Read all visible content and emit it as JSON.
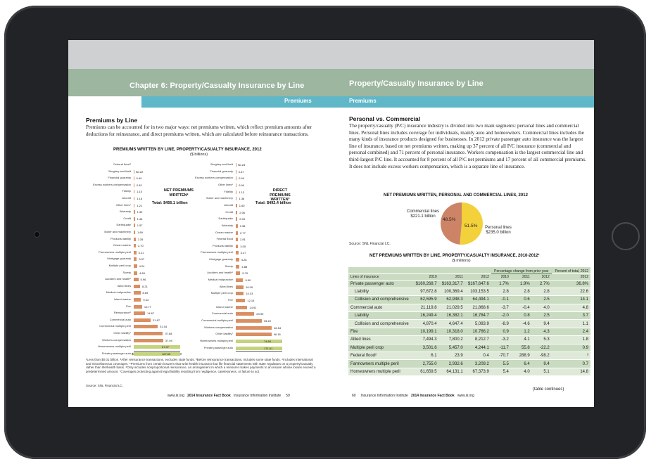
{
  "left_page": {
    "chapter_title": "Chapter 6: Property/Casualty Insurance by Line",
    "section_tab": "Premiums",
    "heading": "Premiums by Line",
    "body": "Premiums can be accounted for in two major ways: net premiums written, which reflect premium amounts after deductions for reinsurance, and direct premiums written, which are calculated before reinsurance transactions.",
    "chart_title": "PREMIUMS WRITTEN BY LINE, PROPERTY/CASUALTY INSURANCE, 2012",
    "chart_subtitle": "($ billions)",
    "net_label": "NET PREMIUMS WRITTEN²",
    "net_total": "Total: $456.1 billion",
    "direct_label": "DIRECT PREMIUMS WRITTEN³",
    "direct_total": "Total: $492.4 billion",
    "footnotes": "¹Less than $0.01 billion. ²After reinsurance transactions, excludes state funds. ³Before reinsurance transactions, includes some state funds. ⁴Includes international and miscellaneous coverages. ⁵Premiums from certain insurers that write health insurance but file financial statements with state regulators on a property/casualty rather than life/health basis. ⁶Only includes nonproportional reinsurance, an arrangement in which a reinsurer makes payments to an insurer whose losses exceed a predetermined amount. ⁷Coverages protecting against legal liability resulting from negligence, carelessness, or failure to act.",
    "source": "Source: SNL Financial LC.",
    "footer": {
      "url": "www.iii.org",
      "book": "2014 Insurance Fact Book",
      "publisher": "Insurance Information Institute",
      "page": "59"
    }
  },
  "right_page": {
    "chapter_title": "Property/Casualty Insurance by Line",
    "section_tab": "Premiums",
    "heading": "Personal vs. Commercial",
    "body": "The property/casualty (P/C) insurance industry is divided into two main segments: personal lines and commercial lines. Personal lines includes coverage for individuals, mainly auto and homeowners. Commercial lines includes the many kinds of insurance products designed for businesses. In 2012 private passenger auto insurance was the largest line of insurance, based on net premiums written, making up 37 percent of all P/C insurance (commercial and personal combined) and 71 percent of personal insurance. Workers compensation is the largest commercial line and third-largest P/C line. It accounted for 8 percent of all P/C net premiums and 17 percent of all commercial premiums. It does not include excess workers compensation, which is a separate line of insurance.",
    "pie_title": "NET PREMIUMS WRITTEN, PERSONAL AND COMMERCIAL LINES, 2012",
    "pie_commercial_label": "Commercial lines $221.1 billion",
    "pie_commercial_pct": "48.5%",
    "pie_personal_label": "Personal lines $235.0 billion",
    "pie_personal_pct": "51.5%",
    "pie_source": "Source: SNL Financial LC.",
    "table_title": "NET PREMIUMS WRITTEN BY LINE, PROPERTY/CASUALTY INSURANCE, 2010-2012¹",
    "table_subtitle": "($ millions)",
    "table_continues": "(table continues)",
    "footer": {
      "page": "60",
      "publisher": "Insurance Information Institute",
      "book": "2014 Insurance Fact Book",
      "url": "www.iii.org"
    }
  },
  "colors": {
    "header_green": "#9cb6a0",
    "tab_teal": "#5fb7c7",
    "bar_orange": "#d98f62",
    "bar_highlight": "#c4d37e",
    "pie_commercial": "#cd8466",
    "pie_personal": "#f2d13a",
    "table_green": "#c9dbc0"
  },
  "chart_data": [
    {
      "type": "bar",
      "title": "NET PREMIUMS WRITTEN²",
      "categories": [
        "Federal flood¹",
        "Burglary and theft",
        "Financial guaranty",
        "Excess workers compensation",
        "Fidelity",
        "Aircraft",
        "Other lines⁴",
        "Warranty",
        "Credit",
        "Earthquake",
        "Boiler and machinery",
        "Products liability",
        "Ocean marine",
        "Farmowners multiple peril",
        "Mortgage guaranty",
        "Multiple peril crop",
        "Surety",
        "Accident and health⁵",
        "Allied lines",
        "Medical malpractice",
        "Inland marine",
        "Fire",
        "Reinsurance⁶",
        "Commercial auto",
        "Commercial multiple peril",
        "Other liability⁷",
        "Workers compensation",
        "Homeowners multiple peril",
        "Private passenger auto"
      ],
      "values": [
        0,
        0.22,
        0.49,
        0.82,
        1.1,
        1.16,
        1.21,
        1.39,
        1.46,
        1.57,
        1.89,
        2.35,
        2.7,
        3.21,
        3.97,
        4.24,
        4.69,
        5.96,
        8.21,
        8.69,
        9.44,
        10.77,
        14.67,
        21.87,
        31.04,
        37.68,
        37.94,
        67.37,
        167.65
      ],
      "value_labels": [
        "",
        "$0.22",
        "0.49",
        "0.82",
        "1.10",
        "1.16",
        "1.21",
        "1.39",
        "1.46",
        "1.57",
        "1.89",
        "2.35",
        "2.70",
        "3.21",
        "3.97",
        "4.24",
        "4.69",
        "5.96",
        "8.21",
        "8.69",
        "9.44",
        "10.77",
        "14.67",
        "21.87",
        "31.04",
        "37.68",
        "37.94",
        "67.37",
        "167.65"
      ],
      "xlim": [
        0,
        60
      ],
      "ticks": [
        "$0",
        "10",
        "20",
        "30",
        "40",
        "50",
        "60"
      ]
    },
    {
      "type": "bar",
      "title": "DIRECT PREMIUMS WRITTEN³",
      "categories": [
        "Burglary and theft",
        "Financial guaranty",
        "Excess workers compensation",
        "Other lines⁴",
        "Fidelity",
        "Boiler and machinery",
        "Aircraft",
        "Credit",
        "Earthquake",
        "Warranty",
        "Ocean marine",
        "Federal flood",
        "Products liability",
        "Farmowners multiple peril",
        "Mortgage guaranty",
        "Surety",
        "Accident and health⁵",
        "Medical malpractice",
        "Allied lines",
        "Multiple peril crop",
        "Fire",
        "Inland marine",
        "Commercial auto",
        "Commercial multiple peril",
        "Workers compensation",
        "Other liability⁷",
        "Homeowners multiple peril",
        "Private passenger auto"
      ],
      "values": [
        0.23,
        0.67,
        0.99,
        0.99,
        1.13,
        1.36,
        1.6,
        2.05,
        2.09,
        2.38,
        2.77,
        2.81,
        3.05,
        3.27,
        4.28,
        4.88,
        5.79,
        9.5,
        10.09,
        10.33,
        12.15,
        14.91,
        23.9,
        33.49,
        46.54,
        46.16,
        74.89,
        171.61
      ],
      "value_labels": [
        "$0.23",
        "0.67",
        "0.99",
        "0.99",
        "1.13",
        "1.36",
        "1.60",
        "2.05",
        "2.09",
        "2.38",
        "2.77",
        "2.81",
        "3.05",
        "3.27",
        "4.28",
        "4.88",
        "5.79",
        "9.50",
        "10.09",
        "10.33",
        "12.15",
        "14.91",
        "23.90",
        "33.49",
        "46.54",
        "46.16",
        "74.89",
        "171.61"
      ],
      "xlim": [
        0,
        60
      ],
      "ticks": [
        "$0",
        "10",
        "20",
        "30",
        "40",
        "50",
        "60"
      ]
    },
    {
      "type": "pie",
      "title": "NET PREMIUMS WRITTEN, PERSONAL AND COMMERCIAL LINES, 2012",
      "categories": [
        "Commercial lines",
        "Personal lines"
      ],
      "values": [
        48.5,
        51.5
      ]
    },
    {
      "type": "table",
      "title": "NET PREMIUMS WRITTEN BY LINE, PROPERTY/CASUALTY INSURANCE, 2010-2012¹",
      "group_header": "Percentage change from prior year",
      "share_header": "Percent of total, 2012",
      "columns": [
        "Lines of insurance",
        "2010",
        "2011",
        "2012",
        "2010",
        "2011",
        "2012",
        "2012"
      ],
      "rows": [
        {
          "label": "Private passenger auto",
          "cells": [
            "$160,268.7",
            "$163,317.7",
            "$167,647.6",
            "1.7%",
            "1.9%",
            "2.7%",
            "36.8%"
          ]
        },
        {
          "label": "Liability",
          "indent": true,
          "cells": [
            "97,672.8",
            "100,369.4",
            "103,153.5",
            "2.8",
            "2.8",
            "2.8",
            "22.6"
          ]
        },
        {
          "label": "Collision and comprehensive",
          "indent": true,
          "cells": [
            "62,595.9",
            "62,948.3",
            "64,494.1",
            "-0.1",
            "0.6",
            "2.5",
            "14.1"
          ]
        },
        {
          "label": "Commercial auto",
          "cells": [
            "21,119.8",
            "21,029.5",
            "21,868.6",
            "-3.7",
            "-0.4",
            "4.0",
            "4.8"
          ]
        },
        {
          "label": "Liability",
          "indent": true,
          "cells": [
            "16,249.4",
            "16,382.1",
            "16,784.7",
            "-2.0",
            "0.8",
            "2.5",
            "3.7"
          ]
        },
        {
          "label": "Collision and comprehensive",
          "indent": true,
          "cells": [
            "4,870.4",
            "4,647.4",
            "5,083.9",
            "-8.9",
            "-4.6",
            "9.4",
            "1.1"
          ]
        },
        {
          "label": "Fire",
          "cells": [
            "10,199.1",
            "10,318.0",
            "10,766.2",
            "0.9",
            "1.2",
            "4.3",
            "2.4"
          ]
        },
        {
          "label": "Allied lines",
          "cells": [
            "7,494.3",
            "7,800.2",
            "8,212.7",
            "-3.2",
            "4.1",
            "5.3",
            "1.8"
          ]
        },
        {
          "label": "Multiple peril crop",
          "cells": [
            "3,501.6",
            "5,457.0",
            "4,244.1",
            "-11.7",
            "55.8",
            "-22.2",
            "0.9"
          ]
        },
        {
          "label": "Federal flood²",
          "cells": [
            "6.1",
            "23.9",
            "0.4",
            "-70.7",
            "288.9",
            "-98.2",
            "³"
          ]
        },
        {
          "label": "Farmowners multiple peril",
          "cells": [
            "2,755.0",
            "2,932.6",
            "3,209.2",
            "5.5",
            "6.4",
            "9.4",
            "0.7"
          ]
        },
        {
          "label": "Homeowners multiple peril",
          "cells": [
            "61,659.5",
            "64,131.1",
            "67,373.9",
            "5.4",
            "4.0",
            "5.1",
            "14.8"
          ]
        }
      ]
    }
  ]
}
